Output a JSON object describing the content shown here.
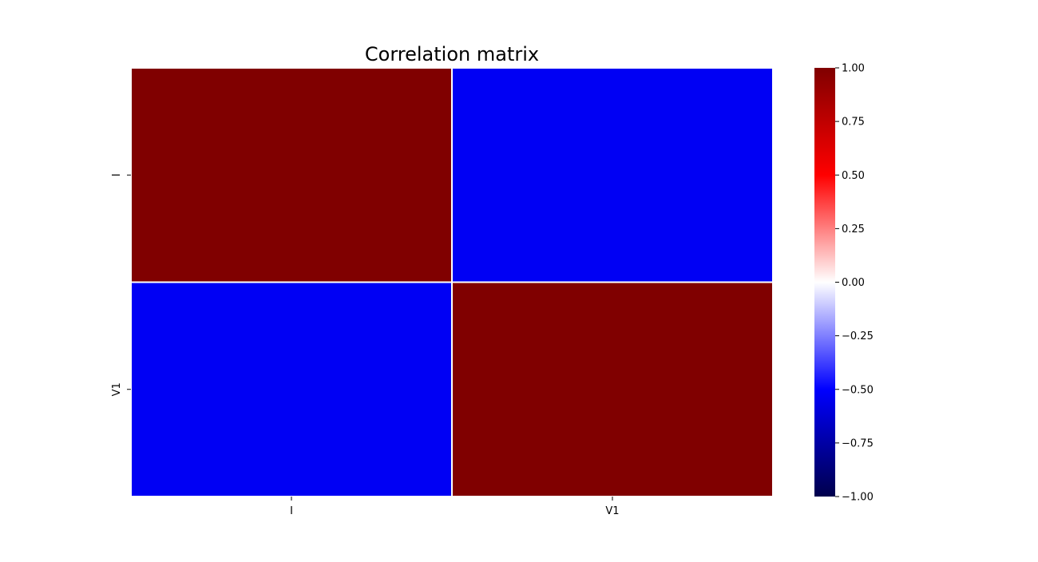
{
  "chart_data": {
    "type": "heatmap",
    "title": "Correlation matrix",
    "x_labels": [
      "I",
      "V1"
    ],
    "y_labels": [
      "I",
      "V1"
    ],
    "values": [
      [
        1.0,
        -0.53
      ],
      [
        -0.53,
        1.0
      ]
    ],
    "colorbar": {
      "colormap": "seismic",
      "vmin": -1.0,
      "vmax": 1.0,
      "ticks": [
        1.0,
        0.75,
        0.5,
        0.25,
        0.0,
        -0.25,
        -0.5,
        -0.75,
        -1.0
      ],
      "tick_labels": [
        "1.00",
        "0.75",
        "0.50",
        "0.25",
        "0.00",
        "−0.25",
        "−0.50",
        "−0.75",
        "−1.00"
      ]
    },
    "cell_border_color": "#ffffff"
  }
}
